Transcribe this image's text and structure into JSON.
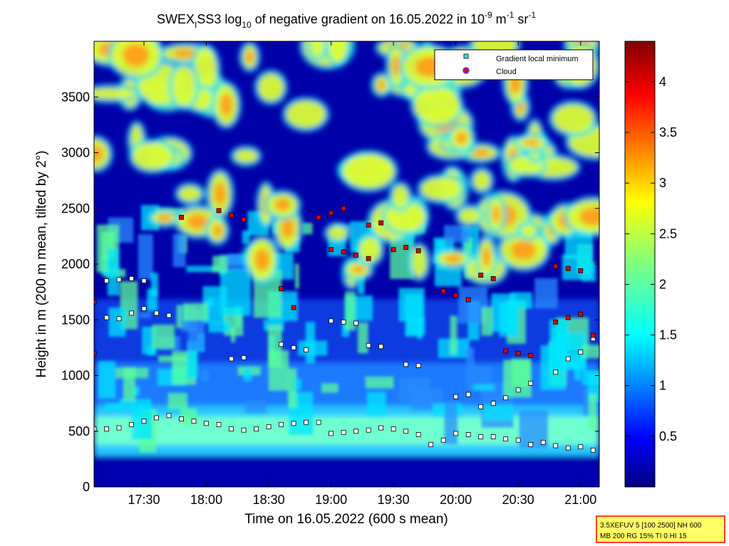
{
  "title": {
    "main": "SWEX",
    "sub_i": "I",
    "after_sub": "SS3 log",
    "sub_10": "10",
    "rest": " of negative gradient on 16.05.2022 in 10",
    "exp1": "-9",
    "unit_m": " m",
    "exp2": "-1",
    "unit_sr": " sr",
    "exp3": "-1"
  },
  "axes": {
    "xlabel": "Time on 16.05.2022 (600 s mean)",
    "ylabel": "Height in m (200 m mean, tilted by 2°)",
    "x_ticks": [
      "17:30",
      "18:00",
      "18:30",
      "19:00",
      "19:30",
      "20:00",
      "20:30",
      "21:00"
    ],
    "y_ticks": [
      "0",
      "500",
      "1000",
      "1500",
      "2000",
      "2500",
      "3000",
      "3500"
    ],
    "colorbar_ticks": [
      "0.5",
      "1",
      "1.5",
      "2",
      "2.5",
      "3",
      "3.5",
      "4"
    ]
  },
  "legend": {
    "items": [
      {
        "label": "Gradient local minimum",
        "color": "#40e0e0",
        "marker": "square"
      },
      {
        "label": "Cloud",
        "color": "#ff0000",
        "edge": "#4040ff",
        "marker": "circle"
      }
    ]
  },
  "info_box": {
    "line1": "3.5XEFUV 5 [100 2500] NH 600",
    "line2": "MB 200 RG 15% TI 0 HI 15"
  },
  "chart_data": {
    "type": "heatmap",
    "x_range_hours": [
      17.1,
      21.15
    ],
    "y_range_m": [
      0,
      4000
    ],
    "color_range": [
      0,
      4.4
    ],
    "colormap": "jet",
    "series": [
      {
        "name": "Gradient local minimum",
        "points": [
          [
            17.1,
            520
          ],
          [
            17.2,
            520
          ],
          [
            17.3,
            530
          ],
          [
            17.4,
            560
          ],
          [
            17.5,
            590
          ],
          [
            17.6,
            620
          ],
          [
            17.7,
            640
          ],
          [
            17.8,
            610
          ],
          [
            17.9,
            590
          ],
          [
            18.0,
            570
          ],
          [
            18.1,
            560
          ],
          [
            18.2,
            520
          ],
          [
            18.3,
            510
          ],
          [
            18.4,
            520
          ],
          [
            18.5,
            540
          ],
          [
            18.6,
            560
          ],
          [
            18.7,
            570
          ],
          [
            18.8,
            580
          ],
          [
            18.9,
            580
          ],
          [
            19.0,
            480
          ],
          [
            19.1,
            490
          ],
          [
            19.2,
            500
          ],
          [
            19.3,
            510
          ],
          [
            19.4,
            530
          ],
          [
            19.5,
            520
          ],
          [
            19.6,
            500
          ],
          [
            19.7,
            470
          ],
          [
            19.8,
            380
          ],
          [
            19.9,
            420
          ],
          [
            20.0,
            480
          ],
          [
            20.1,
            470
          ],
          [
            20.2,
            450
          ],
          [
            20.3,
            450
          ],
          [
            20.4,
            430
          ],
          [
            20.5,
            420
          ],
          [
            20.6,
            380
          ],
          [
            20.7,
            400
          ],
          [
            20.8,
            370
          ],
          [
            20.9,
            350
          ],
          [
            21.0,
            360
          ],
          [
            21.1,
            330
          ],
          [
            17.1,
            1660
          ],
          [
            17.2,
            1520
          ],
          [
            17.3,
            1510
          ],
          [
            17.4,
            1560
          ],
          [
            17.5,
            1600
          ],
          [
            17.6,
            1560
          ],
          [
            17.7,
            1540
          ],
          [
            17.2,
            1850
          ],
          [
            17.3,
            1860
          ],
          [
            17.4,
            1870
          ],
          [
            17.5,
            1850
          ],
          [
            18.2,
            1150
          ],
          [
            18.3,
            1160
          ],
          [
            18.6,
            1280
          ],
          [
            18.7,
            1250
          ],
          [
            18.8,
            1230
          ],
          [
            19.0,
            1490
          ],
          [
            19.1,
            1480
          ],
          [
            19.2,
            1470
          ],
          [
            19.3,
            1270
          ],
          [
            19.4,
            1260
          ],
          [
            19.6,
            1100
          ],
          [
            19.7,
            1090
          ],
          [
            20.0,
            810
          ],
          [
            20.1,
            830
          ],
          [
            20.2,
            720
          ],
          [
            20.3,
            750
          ],
          [
            20.4,
            800
          ],
          [
            20.5,
            870
          ],
          [
            20.6,
            930
          ],
          [
            20.8,
            1030
          ],
          [
            20.9,
            1150
          ],
          [
            21.0,
            1210
          ],
          [
            21.1,
            1330
          ]
        ]
      },
      {
        "name": "Cloud",
        "points": [
          [
            17.1,
            1660
          ],
          [
            17.1,
            1200
          ],
          [
            17.8,
            2420
          ],
          [
            18.1,
            2480
          ],
          [
            18.2,
            2440
          ],
          [
            18.3,
            2400
          ],
          [
            18.6,
            1780
          ],
          [
            18.7,
            1610
          ],
          [
            18.9,
            2420
          ],
          [
            19.0,
            2460
          ],
          [
            19.1,
            2500
          ],
          [
            19.3,
            2350
          ],
          [
            19.4,
            2370
          ],
          [
            19.0,
            2130
          ],
          [
            19.1,
            2110
          ],
          [
            19.2,
            2080
          ],
          [
            19.3,
            2050
          ],
          [
            19.5,
            2130
          ],
          [
            19.6,
            2150
          ],
          [
            19.7,
            2120
          ],
          [
            19.9,
            1760
          ],
          [
            20.0,
            1720
          ],
          [
            20.1,
            1680
          ],
          [
            20.2,
            1900
          ],
          [
            20.3,
            1870
          ],
          [
            20.4,
            1220
          ],
          [
            20.5,
            1200
          ],
          [
            20.6,
            1180
          ],
          [
            20.8,
            1980
          ],
          [
            20.9,
            1960
          ],
          [
            21.0,
            1940
          ],
          [
            20.8,
            1480
          ],
          [
            20.9,
            1520
          ],
          [
            21.0,
            1550
          ],
          [
            21.1,
            1360
          ]
        ]
      }
    ]
  }
}
